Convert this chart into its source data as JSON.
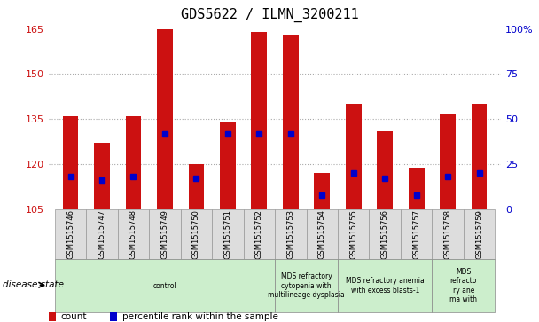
{
  "title": "GDS5622 / ILMN_3200211",
  "samples": [
    "GSM1515746",
    "GSM1515747",
    "GSM1515748",
    "GSM1515749",
    "GSM1515750",
    "GSM1515751",
    "GSM1515752",
    "GSM1515753",
    "GSM1515754",
    "GSM1515755",
    "GSM1515756",
    "GSM1515757",
    "GSM1515758",
    "GSM1515759"
  ],
  "counts": [
    136,
    127,
    136,
    165,
    120,
    134,
    164,
    163,
    117,
    140,
    131,
    119,
    137,
    140
  ],
  "percentile_ranks": [
    18,
    16,
    18,
    42,
    17,
    42,
    42,
    42,
    8,
    20,
    17,
    8,
    18,
    20
  ],
  "base": 105,
  "ylim_left": [
    105,
    165
  ],
  "ylim_right": [
    0,
    100
  ],
  "yticks_left": [
    105,
    120,
    135,
    150,
    165
  ],
  "yticks_right": [
    0,
    25,
    50,
    75,
    100
  ],
  "bar_color": "#cc1111",
  "marker_color": "#0000cc",
  "grid_color": "#aaaaaa",
  "disease_groups": [
    {
      "label": "control",
      "start": 0,
      "end": 7,
      "color": "#cceecc"
    },
    {
      "label": "MDS refractory\ncytopenia with\nmultilineage dysplasia",
      "start": 7,
      "end": 9,
      "color": "#cceecc"
    },
    {
      "label": "MDS refractory anemia\nwith excess blasts-1",
      "start": 9,
      "end": 12,
      "color": "#cceecc"
    },
    {
      "label": "MDS\nrefracto\nry ane\nma with",
      "start": 12,
      "end": 14,
      "color": "#cceecc"
    }
  ],
  "disease_state_label": "disease state",
  "legend_count_label": "count",
  "legend_percentile_label": "percentile rank within the sample",
  "bar_width": 0.5
}
